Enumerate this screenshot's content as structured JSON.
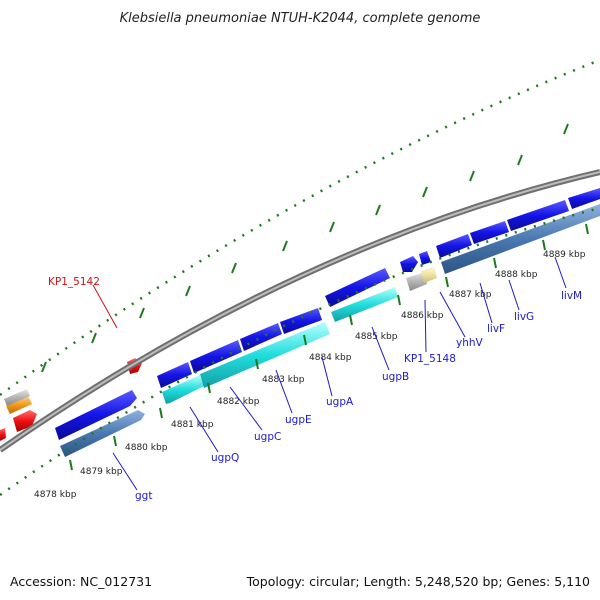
{
  "title": "Klebsiella pneumoniae NTUH-K2044, complete genome",
  "footer": {
    "accession": "Accession: NC_012731",
    "summary": "Topology: circular; Length: 5,248,520 bp; Genes: 5,110"
  },
  "colors": {
    "label_blue": "#1a1ad0",
    "label_red": "#cc1111",
    "tick_green": "#1e7a1e",
    "gene_blue": "#1414e6",
    "gene_steel": "#4a78b0",
    "gene_cyan": "#22dddd",
    "gene_red": "#ee1111",
    "gene_orange": "#f39a1a",
    "gene_grey": "#b4b4b4",
    "gene_khaki": "#efe3a2",
    "backbone": "#8c8c8c"
  },
  "kbp_labels": [
    "4878 kbp",
    "4879 kbp",
    "4880 kbp",
    "4881 kbp",
    "4882 kbp",
    "4883 kbp",
    "4884 kbp",
    "4885 kbp",
    "4886 kbp",
    "4887 kbp",
    "4888 kbp",
    "4889 kbp"
  ],
  "gene_labels": [
    {
      "text": "KP1_5142",
      "color": "red"
    },
    {
      "text": "ggt",
      "color": "blue"
    },
    {
      "text": "ugpQ",
      "color": "blue"
    },
    {
      "text": "ugpC",
      "color": "blue"
    },
    {
      "text": "ugpE",
      "color": "blue"
    },
    {
      "text": "ugpA",
      "color": "blue"
    },
    {
      "text": "ugpB",
      "color": "blue"
    },
    {
      "text": "KP1_5148",
      "color": "blue"
    },
    {
      "text": "yhhV",
      "color": "blue"
    },
    {
      "text": "livF",
      "color": "blue"
    },
    {
      "text": "livG",
      "color": "blue"
    },
    {
      "text": "livM",
      "color": "blue"
    }
  ]
}
